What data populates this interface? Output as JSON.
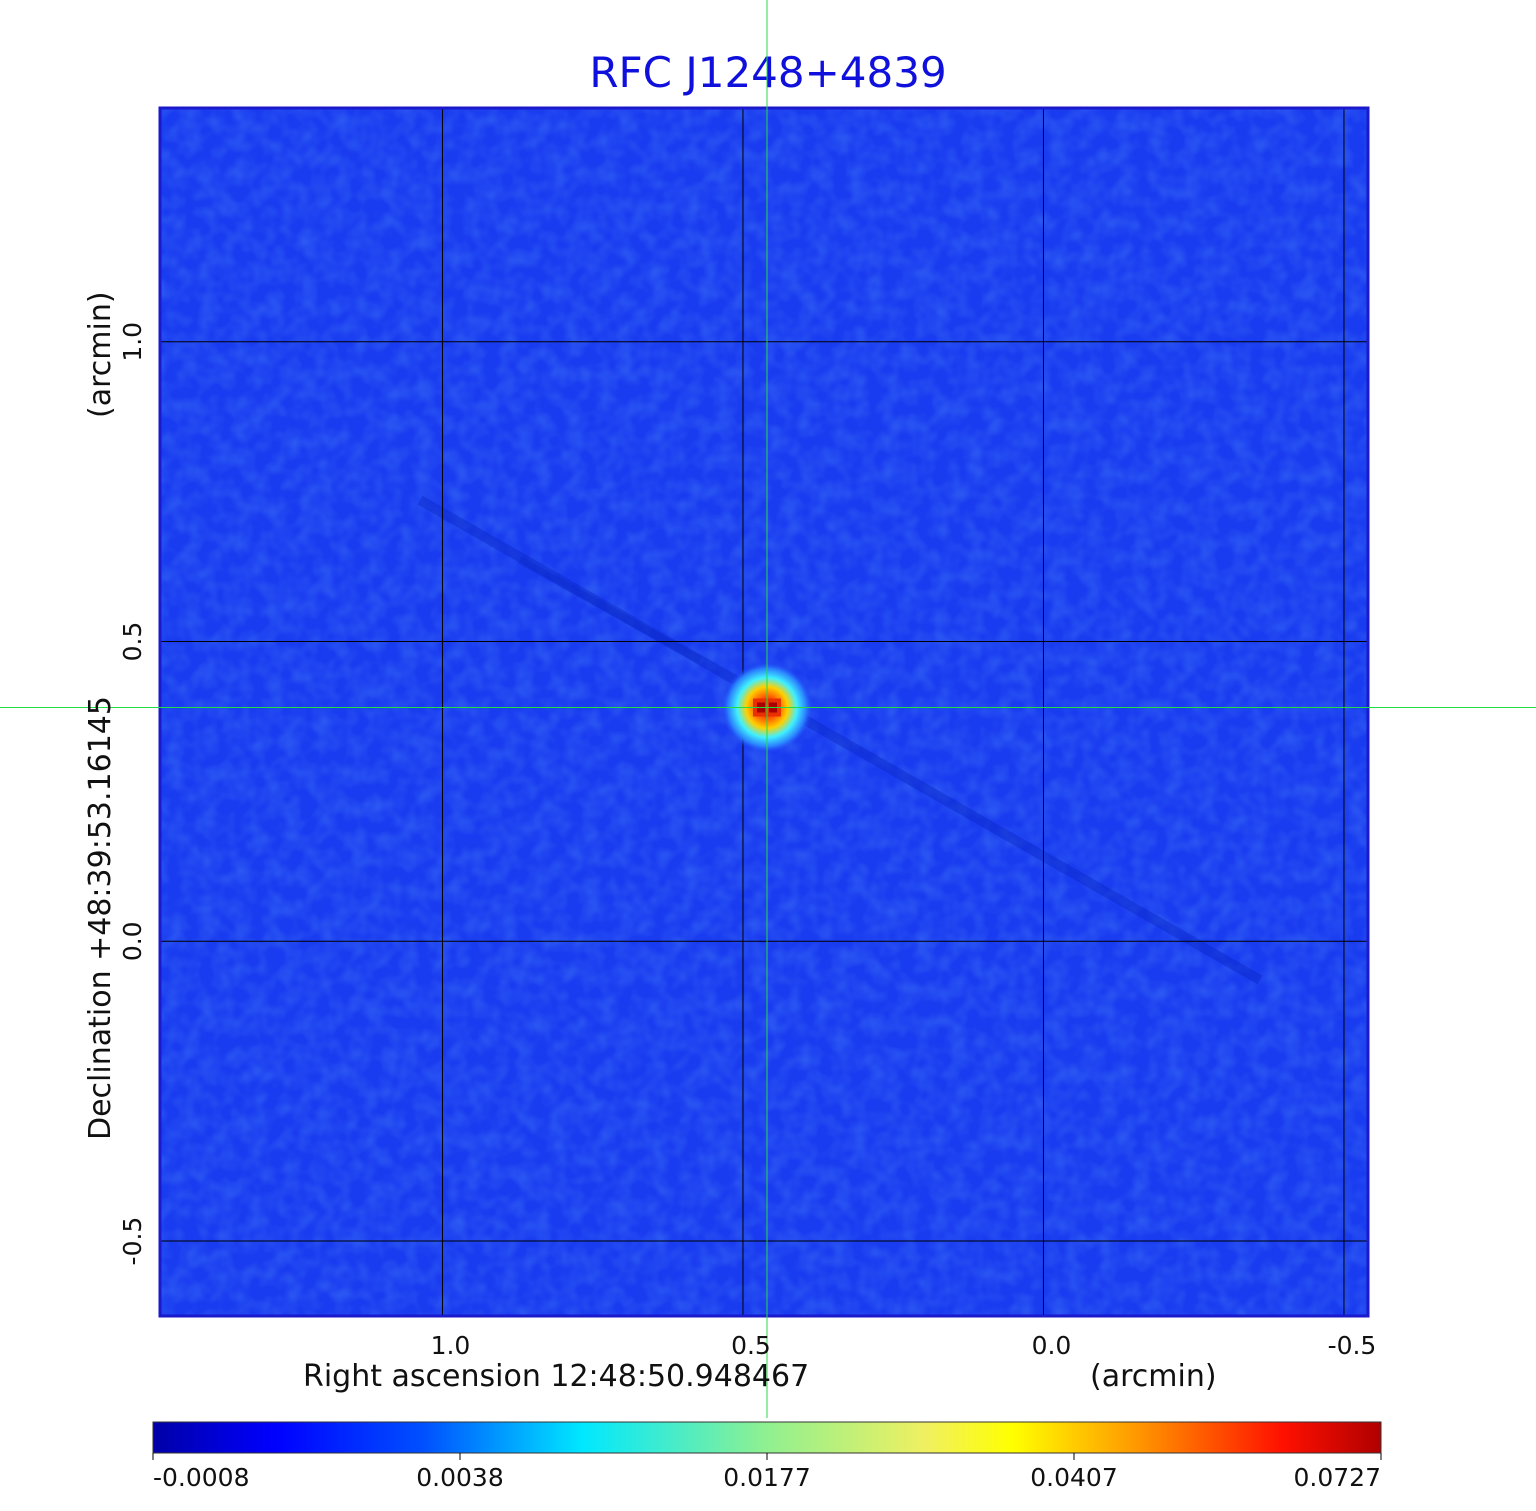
{
  "chart_data": {
    "type": "heatmap",
    "title": "RFC J1248+4839",
    "xlabel": "Right ascension  12:48:50.948467",
    "xunit": "(arcmin)",
    "ylabel": "Declination  +48:39:53.16145",
    "yunit": "(arcmin)",
    "x_ticks": [
      "1.0",
      "0.5",
      "0.0",
      "-0.5"
    ],
    "y_ticks": [
      "1.0",
      "0.5",
      "0.0",
      "-0.5"
    ],
    "x_tick_values": [
      1.0,
      0.5,
      0.0,
      -0.5
    ],
    "y_tick_values": [
      1.0,
      0.5,
      0.0,
      -0.5
    ],
    "xlim": [
      1.47,
      -0.54
    ],
    "ylim": [
      -0.625,
      1.39
    ],
    "grid": true,
    "crosshair": {
      "x": 0.46,
      "y": 0.39
    },
    "source_peak": {
      "x": 0.46,
      "y": 0.39,
      "value": 0.0727
    },
    "colorbar": {
      "ticks": [
        "-0.0008",
        "0.0038",
        "0.0177",
        "0.0407",
        "0.0727"
      ],
      "values": [
        -0.0008,
        0.0038,
        0.0177,
        0.0407,
        0.0727
      ],
      "colormap": "jet"
    },
    "colors": {
      "title": "#1010dd",
      "background_map": "#1a3cf0",
      "crosshair": "#22dd44",
      "grid": "#000000"
    }
  }
}
